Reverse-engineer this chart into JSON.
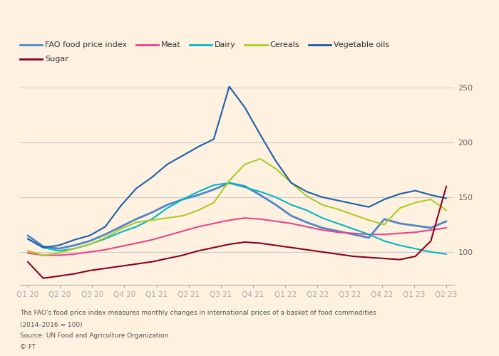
{
  "x_labels": [
    "Q1 20",
    "Q2 20",
    "Q3 20",
    "Q4 20",
    "Q1 21",
    "Q2 21",
    "Q3 21",
    "Q4 21",
    "Q1 22",
    "Q2 22",
    "Q3 22",
    "Q4 22",
    "Q1 23",
    "Q2 23"
  ],
  "series_order": [
    "FAO food price index",
    "Meat",
    "Dairy",
    "Cereals",
    "Vegetable oils",
    "Sugar"
  ],
  "series": {
    "FAO food price index": {
      "color": "#4e86c8",
      "linewidth": 2.0,
      "data": [
        115,
        105,
        103,
        106,
        110,
        116,
        123,
        130,
        136,
        143,
        148,
        152,
        157,
        163,
        160,
        152,
        143,
        133,
        127,
        122,
        119,
        116,
        113,
        130,
        126,
        124,
        122,
        128
      ]
    },
    "Meat": {
      "color": "#e8448a",
      "linewidth": 1.5,
      "data": [
        99,
        97,
        97,
        98,
        100,
        102,
        105,
        108,
        111,
        115,
        119,
        123,
        126,
        129,
        131,
        130,
        128,
        126,
        123,
        120,
        118,
        117,
        116,
        116,
        117,
        118,
        120,
        122
      ]
    },
    "Dairy": {
      "color": "#00b8c8",
      "linewidth": 1.5,
      "data": [
        112,
        104,
        101,
        103,
        107,
        112,
        118,
        123,
        130,
        140,
        148,
        155,
        161,
        163,
        159,
        155,
        150,
        143,
        138,
        131,
        126,
        121,
        116,
        110,
        106,
        103,
        100,
        98
      ]
    },
    "Cereals": {
      "color": "#aacc22",
      "linewidth": 1.5,
      "data": [
        101,
        97,
        99,
        103,
        107,
        113,
        121,
        127,
        129,
        131,
        133,
        138,
        145,
        165,
        180,
        185,
        176,
        163,
        151,
        143,
        139,
        134,
        129,
        125,
        140,
        145,
        148,
        138
      ]
    },
    "Vegetable oils": {
      "color": "#1a5fa8",
      "linewidth": 1.5,
      "data": [
        112,
        104,
        106,
        111,
        115,
        123,
        142,
        158,
        168,
        180,
        188,
        196,
        203,
        251,
        232,
        207,
        183,
        163,
        155,
        150,
        147,
        144,
        141,
        148,
        153,
        156,
        152,
        149
      ]
    },
    "Sugar": {
      "color": "#8b0020",
      "linewidth": 1.5,
      "data": [
        91,
        76,
        78,
        80,
        83,
        85,
        87,
        89,
        91,
        94,
        97,
        101,
        104,
        107,
        109,
        108,
        106,
        104,
        102,
        100,
        98,
        96,
        95,
        94,
        93,
        96,
        110,
        160
      ]
    }
  },
  "ylim": [
    70,
    265
  ],
  "yticks": [
    100,
    150,
    200,
    250
  ],
  "n_points": 28,
  "background_color": "#FFF1E0",
  "grid_color": "#cccccc",
  "footer_line1": "The FAO’s food price index measures monthly changes in international prices of a basket of food commodities",
  "footer_line2": "(2014–2016 = 100)",
  "footer_line3": "Source: UN Food and Agriculture Organization",
  "footer_line4": "© FT"
}
